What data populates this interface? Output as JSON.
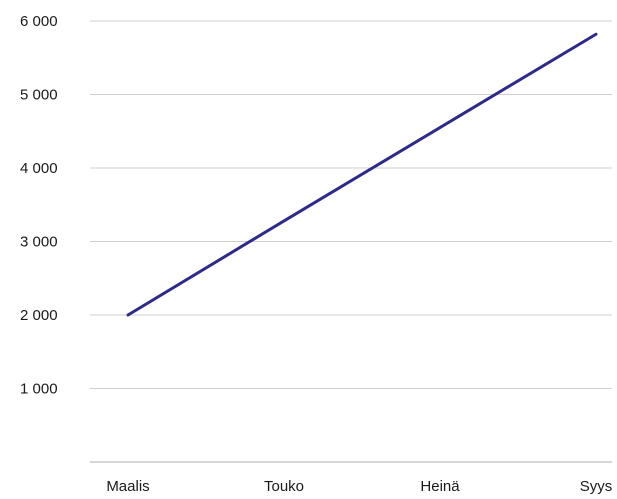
{
  "chart_data": {
    "type": "line",
    "categories": [
      "Maalis",
      "Touko",
      "Heinä",
      "Syys"
    ],
    "series": [
      {
        "values": [
          2000,
          3280,
          4550,
          5820
        ],
        "color": "#2e2a8a"
      }
    ],
    "ylim": [
      0,
      6000
    ],
    "yticks": [
      {
        "value": 1000,
        "label": "1 000"
      },
      {
        "value": 2000,
        "label": "2 000"
      },
      {
        "value": 3000,
        "label": "3 000"
      },
      {
        "value": 4000,
        "label": "4 000"
      },
      {
        "value": 5000,
        "label": "5 000"
      },
      {
        "value": 6000,
        "label": "6 000"
      }
    ],
    "grid": true,
    "legend": "none",
    "title": "",
    "xlabel": "",
    "ylabel": ""
  }
}
